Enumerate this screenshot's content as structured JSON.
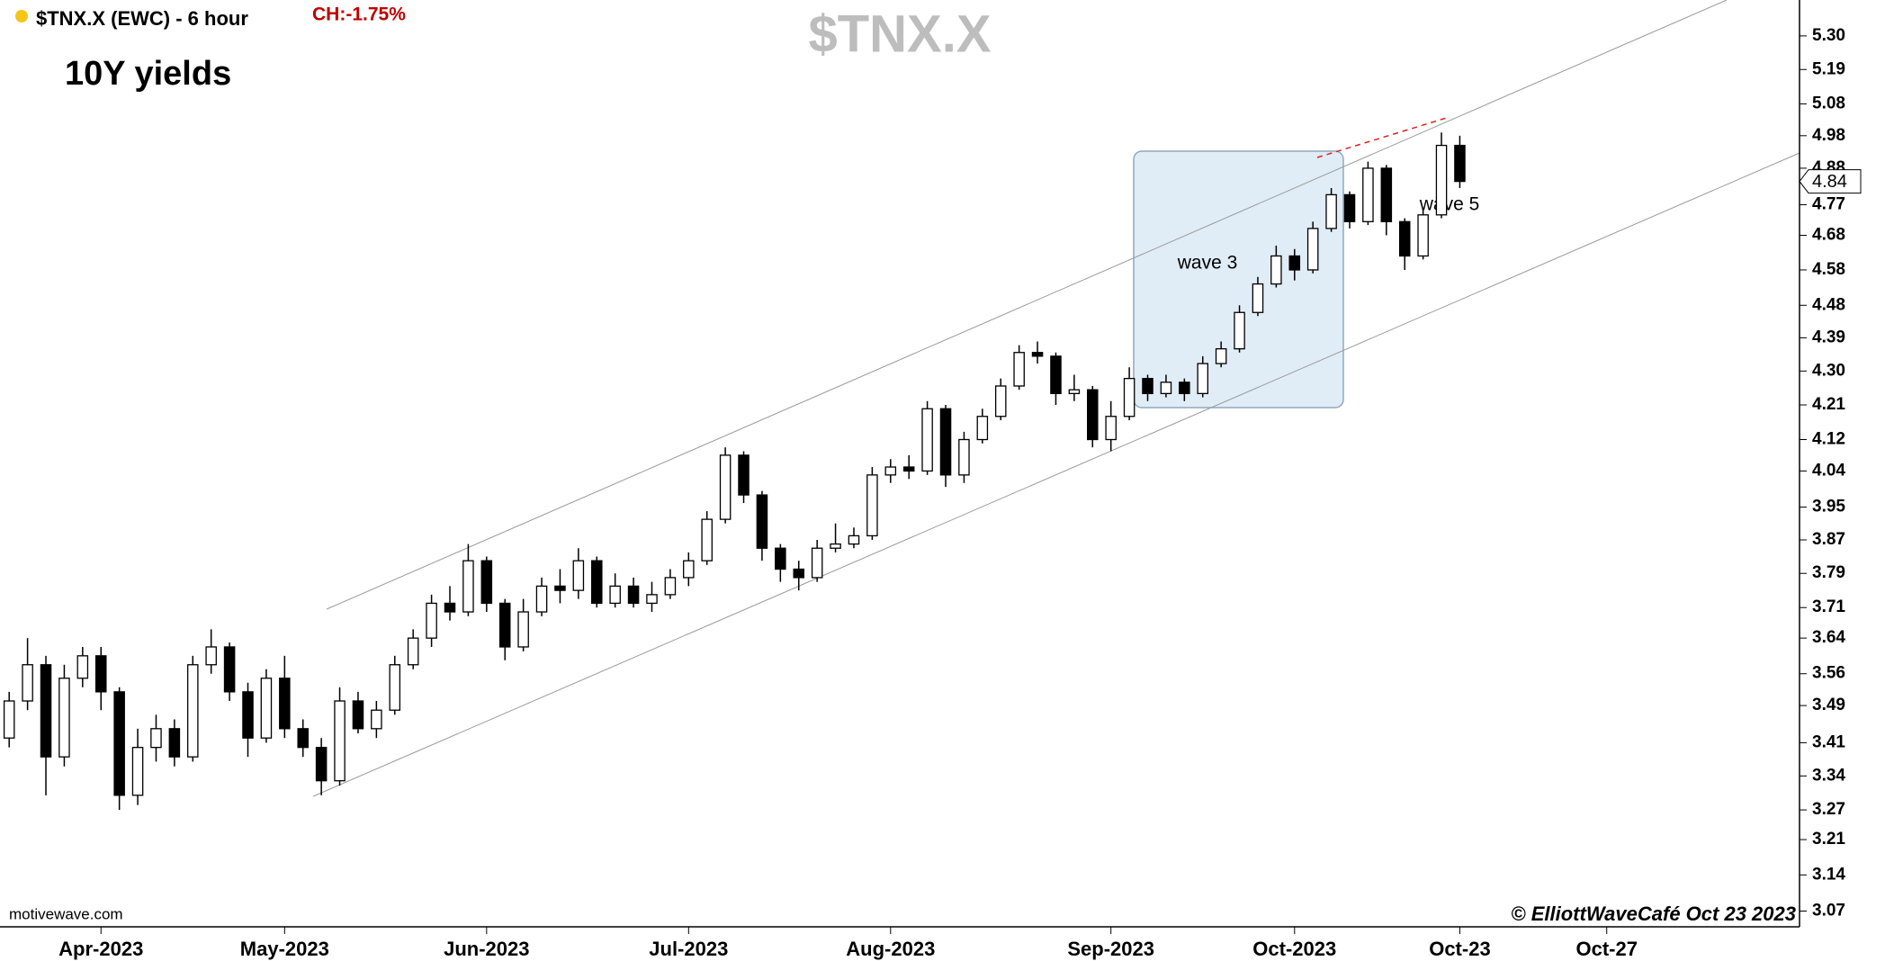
{
  "chart_data": {
    "type": "candlestick",
    "title": "$TNX.X",
    "symbol_label": "$TNX.X (EWC) - 6 hour",
    "change_label": "CH:-1.75%",
    "subtitle": "10Y yields",
    "annotations": [
      "wave 3",
      "wave 5"
    ],
    "watermark": "motivewave.com",
    "copyright": "© ElliottWaveCafé Oct 23 2023",
    "log_scale": true,
    "up_color": "#ffffff",
    "down_color": "#000000",
    "last_value": 4.84,
    "ylim": [
      3.04,
      5.42
    ],
    "yticks": [
      {
        "value": 5.3,
        "label": "5.30"
      },
      5.19,
      5.08,
      4.98,
      4.88,
      4.77,
      4.68,
      4.58,
      4.48,
      4.39,
      {
        "value": 4.3,
        "label": "4.30"
      },
      4.21,
      4.12,
      4.04,
      3.95,
      3.87,
      3.79,
      3.71,
      3.64,
      3.56,
      3.49,
      3.41,
      3.34,
      3.27,
      3.21,
      3.14,
      3.07
    ],
    "categories": [
      null,
      null,
      null,
      null,
      null,
      "Apr-2023",
      null,
      null,
      null,
      null,
      null,
      null,
      null,
      null,
      null,
      "May-2023",
      null,
      null,
      null,
      null,
      null,
      null,
      null,
      null,
      null,
      null,
      "Jun-2023",
      null,
      null,
      null,
      null,
      null,
      null,
      null,
      null,
      null,
      null,
      "Jul-2023",
      null,
      null,
      null,
      null,
      null,
      null,
      null,
      null,
      null,
      null,
      "Aug-2023",
      null,
      null,
      null,
      null,
      null,
      null,
      null,
      null,
      null,
      null,
      null,
      "Sep-2023",
      null,
      null,
      null,
      null,
      null,
      null,
      null,
      null,
      null,
      "Oct-2023",
      null,
      null,
      null,
      null,
      null,
      null,
      null,
      null,
      "Oct-23",
      null,
      null,
      null,
      null,
      null,
      null,
      null,
      "Oct-27",
      null,
      null,
      null,
      null,
      null,
      null,
      null,
      null,
      null,
      null
    ],
    "open": [
      3.42,
      3.5,
      3.58,
      3.38,
      3.55,
      3.6,
      3.52,
      3.3,
      3.4,
      3.44,
      3.38,
      3.58,
      3.62,
      3.52,
      3.42,
      3.55,
      3.44,
      3.4,
      3.33,
      3.5,
      3.44,
      3.48,
      3.58,
      3.64,
      3.72,
      3.7,
      3.82,
      3.72,
      3.62,
      3.7,
      3.76,
      3.75,
      3.82,
      3.72,
      3.76,
      3.72,
      3.74,
      3.78,
      3.82,
      3.92,
      4.08,
      3.98,
      3.85,
      3.8,
      3.78,
      3.85,
      3.86,
      3.88,
      4.03,
      4.05,
      4.04,
      4.2,
      4.03,
      4.12,
      4.18,
      4.26,
      4.35,
      4.34,
      4.24,
      4.25,
      4.12,
      4.18,
      4.28,
      4.24,
      4.27,
      4.24,
      4.32,
      4.36,
      4.46,
      4.54,
      4.62,
      4.58,
      4.7,
      4.8,
      4.72,
      4.88,
      4.72,
      4.62,
      4.74,
      4.95,
      null,
      null,
      null,
      null,
      null,
      null,
      null,
      null,
      null,
      null,
      null,
      null,
      null,
      null,
      null,
      null,
      null,
      null
    ],
    "high": [
      3.52,
      3.64,
      3.6,
      3.58,
      3.62,
      3.62,
      3.53,
      3.44,
      3.47,
      3.46,
      3.6,
      3.66,
      3.63,
      3.54,
      3.57,
      3.6,
      3.46,
      3.42,
      3.53,
      3.52,
      3.5,
      3.6,
      3.66,
      3.74,
      3.76,
      3.86,
      3.83,
      3.73,
      3.73,
      3.78,
      3.8,
      3.85,
      3.83,
      3.79,
      3.78,
      3.77,
      3.8,
      3.84,
      3.94,
      4.1,
      4.09,
      3.99,
      3.86,
      3.82,
      3.87,
      3.91,
      3.9,
      4.05,
      4.07,
      4.08,
      4.22,
      4.21,
      4.14,
      4.2,
      4.28,
      4.37,
      4.38,
      4.35,
      4.29,
      4.26,
      4.22,
      4.31,
      4.29,
      4.29,
      4.28,
      4.34,
      4.38,
      4.48,
      4.56,
      4.65,
      4.64,
      4.72,
      4.82,
      4.81,
      4.9,
      4.89,
      4.73,
      4.76,
      4.99,
      4.98,
      null,
      null,
      null,
      null,
      null,
      null,
      null,
      null,
      null,
      null,
      null,
      null,
      null,
      null,
      null,
      null,
      null,
      null
    ],
    "low": [
      3.4,
      3.48,
      3.3,
      3.36,
      3.53,
      3.48,
      3.27,
      3.28,
      3.37,
      3.36,
      3.37,
      3.56,
      3.5,
      3.38,
      3.41,
      3.42,
      3.38,
      3.3,
      3.32,
      3.43,
      3.42,
      3.47,
      3.57,
      3.62,
      3.68,
      3.69,
      3.7,
      3.59,
      3.61,
      3.69,
      3.72,
      3.73,
      3.71,
      3.71,
      3.71,
      3.7,
      3.73,
      3.76,
      3.81,
      3.91,
      3.96,
      3.82,
      3.77,
      3.75,
      3.77,
      3.84,
      3.85,
      3.87,
      4.01,
      4.02,
      4.03,
      4.0,
      4.01,
      4.11,
      4.17,
      4.25,
      4.32,
      4.21,
      4.22,
      4.1,
      4.09,
      4.17,
      4.22,
      4.23,
      4.22,
      4.23,
      4.31,
      4.35,
      4.45,
      4.53,
      4.55,
      4.57,
      4.69,
      4.7,
      4.71,
      4.68,
      4.58,
      4.61,
      4.73,
      4.82,
      null,
      null,
      null,
      null,
      null,
      null,
      null,
      null,
      null,
      null,
      null,
      null,
      null,
      null,
      null,
      null,
      null,
      null
    ],
    "close": [
      3.5,
      3.58,
      3.38,
      3.55,
      3.6,
      3.52,
      3.3,
      3.4,
      3.44,
      3.38,
      3.58,
      3.62,
      3.52,
      3.42,
      3.55,
      3.44,
      3.4,
      3.33,
      3.5,
      3.44,
      3.48,
      3.58,
      3.64,
      3.72,
      3.7,
      3.82,
      3.72,
      3.62,
      3.7,
      3.76,
      3.75,
      3.82,
      3.72,
      3.76,
      3.72,
      3.74,
      3.78,
      3.82,
      3.92,
      4.08,
      3.98,
      3.85,
      3.8,
      3.78,
      3.85,
      3.86,
      3.88,
      4.03,
      4.05,
      4.04,
      4.2,
      4.03,
      4.12,
      4.18,
      4.26,
      4.35,
      4.34,
      4.24,
      4.25,
      4.12,
      4.18,
      4.28,
      4.24,
      4.27,
      4.24,
      4.32,
      4.36,
      4.46,
      4.54,
      4.62,
      4.58,
      4.7,
      4.8,
      4.72,
      4.88,
      4.72,
      4.62,
      4.74,
      4.95,
      4.84,
      null,
      null,
      null,
      null,
      null,
      null,
      null,
      null,
      null,
      null,
      null,
      null,
      null,
      null,
      null,
      null,
      null,
      null
    ]
  }
}
